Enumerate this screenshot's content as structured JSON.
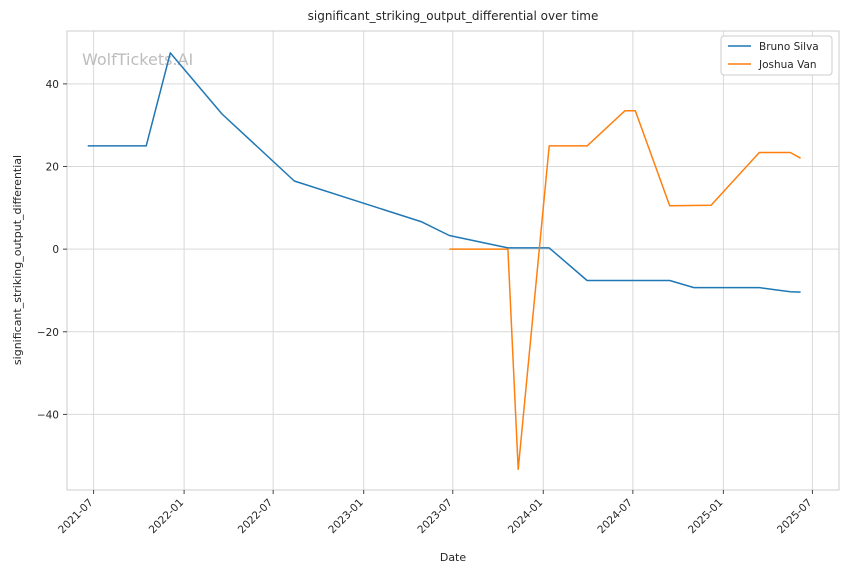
{
  "chart_data": {
    "type": "line",
    "title": "significant_striking_output_differential over time",
    "xlabel": "Date",
    "ylabel": "significant_striking_output_differential",
    "xlim": [
      "2021-05-08",
      "2025-08-24"
    ],
    "ylim": [
      -58.3,
      52.8
    ],
    "xticks": [
      {
        "date": "2021-07-01",
        "label": "2021-07"
      },
      {
        "date": "2022-01-01",
        "label": "2022-01"
      },
      {
        "date": "2022-07-01",
        "label": "2022-07"
      },
      {
        "date": "2023-01-01",
        "label": "2023-01"
      },
      {
        "date": "2023-07-01",
        "label": "2023-07"
      },
      {
        "date": "2024-01-01",
        "label": "2024-01"
      },
      {
        "date": "2024-07-01",
        "label": "2024-07"
      },
      {
        "date": "2025-01-01",
        "label": "2025-01"
      },
      {
        "date": "2025-07-01",
        "label": "2025-07"
      }
    ],
    "yticks": [
      {
        "value": 40,
        "label": "40"
      },
      {
        "value": 20,
        "label": "20"
      },
      {
        "value": 0,
        "label": "0"
      },
      {
        "value": -20,
        "label": "−20"
      },
      {
        "value": -40,
        "label": "−40"
      }
    ],
    "grid": true,
    "legend_position": "top-right",
    "watermark": "WolfTickets.AI",
    "series": [
      {
        "name": "Bruno Silva",
        "color": "#1f77b4",
        "points": [
          [
            "2021-06-19",
            25.0
          ],
          [
            "2021-10-16",
            25.0
          ],
          [
            "2021-12-04",
            47.5
          ],
          [
            "2022-03-19",
            32.7
          ],
          [
            "2022-08-13",
            16.5
          ],
          [
            "2023-04-29",
            6.6
          ],
          [
            "2023-06-24",
            3.3
          ],
          [
            "2023-10-21",
            0.3
          ],
          [
            "2024-01-13",
            0.3
          ],
          [
            "2024-03-30",
            -7.6
          ],
          [
            "2024-09-14",
            -7.6
          ],
          [
            "2024-11-02",
            -9.3
          ],
          [
            "2025-03-15",
            -9.3
          ],
          [
            "2025-05-17",
            -10.3
          ],
          [
            "2025-06-07",
            -10.4
          ]
        ]
      },
      {
        "name": "Joshua Van",
        "color": "#ff7f0e",
        "points": [
          [
            "2023-06-24",
            0.0
          ],
          [
            "2023-10-21",
            0.0
          ],
          [
            "2023-11-11",
            -53.3
          ],
          [
            "2024-01-13",
            25.0
          ],
          [
            "2024-03-30",
            25.0
          ],
          [
            "2024-06-15",
            33.5
          ],
          [
            "2024-07-06",
            33.5
          ],
          [
            "2024-09-14",
            10.5
          ],
          [
            "2024-12-07",
            10.6
          ],
          [
            "2025-03-15",
            23.4
          ],
          [
            "2025-05-17",
            23.4
          ],
          [
            "2025-06-07",
            22.0
          ]
        ]
      }
    ]
  }
}
